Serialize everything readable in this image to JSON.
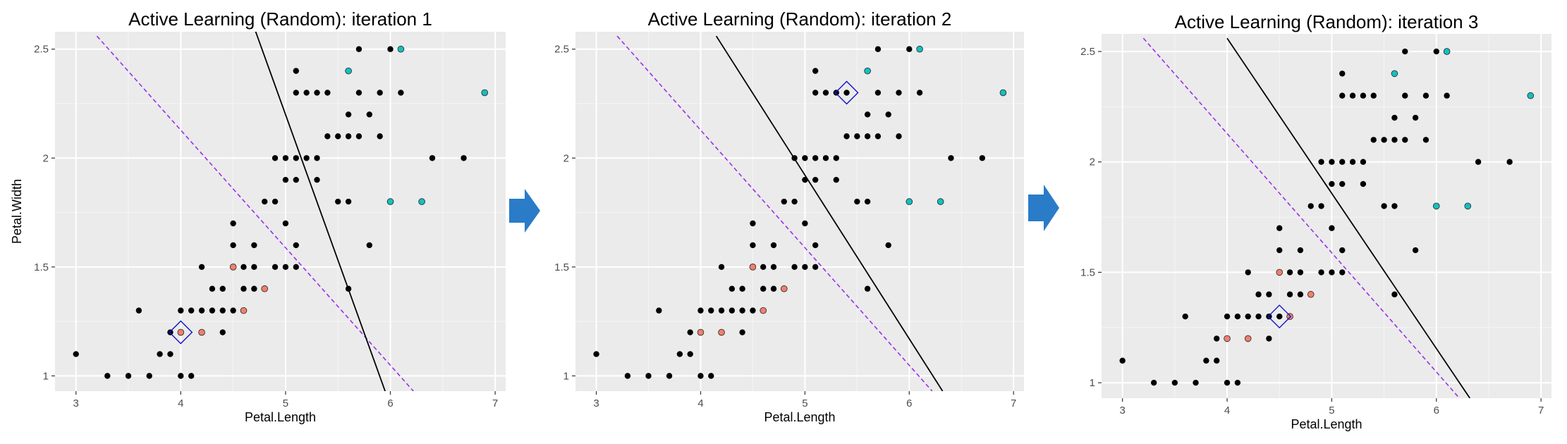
{
  "colors": {
    "panel_bg": "#ebebeb",
    "grid_major": "#ffffff",
    "unlabeled_point": "#000000",
    "labeled_class_a": "#f07f6e",
    "labeled_class_b": "#16bfbf",
    "query_marker": "#1010c8",
    "current_boundary": "#000000",
    "reference_boundary": "#9a2fe8",
    "arrow": "#2a7bc8"
  },
  "chart_data": [
    {
      "type": "scatter",
      "title": "Active Learning (Random): iteration 1",
      "xlabel": "Petal.Length",
      "ylabel": "Petal.Width",
      "xlim": [
        2.8,
        7.1
      ],
      "ylim": [
        0.93,
        2.58
      ],
      "xticks": [
        3,
        4,
        5,
        6,
        7
      ],
      "yticks": [
        1.0,
        1.5,
        2.0,
        2.5
      ],
      "grid": true,
      "query_point": [
        4.0,
        1.2
      ],
      "boundary_solid": [
        [
          4.7,
          2.6
        ],
        [
          5.95,
          0.93
        ]
      ],
      "boundary_dashed": [
        [
          3.2,
          2.56
        ],
        [
          6.22,
          0.93
        ]
      ]
    },
    {
      "type": "scatter",
      "title": "Active Learning (Random): iteration 2",
      "xlabel": "Petal.Length",
      "ylabel": "",
      "xlim": [
        2.8,
        7.1
      ],
      "ylim": [
        0.93,
        2.58
      ],
      "xticks": [
        3,
        4,
        5,
        6,
        7
      ],
      "yticks": [
        1.0,
        1.5,
        2.0,
        2.5
      ],
      "grid": true,
      "query_point": [
        5.4,
        2.3
      ],
      "boundary_solid": [
        [
          4.15,
          2.56
        ],
        [
          6.32,
          0.93
        ]
      ],
      "boundary_dashed": [
        [
          3.2,
          2.56
        ],
        [
          6.22,
          0.93
        ]
      ]
    },
    {
      "type": "scatter",
      "title": "Active Learning (Random): iteration 3",
      "xlabel": "Petal.Length",
      "ylabel": "",
      "xlim": [
        2.8,
        7.1
      ],
      "ylim": [
        0.93,
        2.58
      ],
      "xticks": [
        3,
        4,
        5,
        6,
        7
      ],
      "yticks": [
        1.0,
        1.5,
        2.0,
        2.5
      ],
      "grid": true,
      "query_point": [
        4.5,
        1.3
      ],
      "boundary_solid": [
        [
          4.0,
          2.56
        ],
        [
          6.32,
          0.93
        ]
      ],
      "boundary_dashed": [
        [
          3.2,
          2.56
        ],
        [
          6.22,
          0.93
        ]
      ]
    }
  ],
  "points": {
    "unlabeled": [
      [
        3.0,
        1.1
      ],
      [
        3.3,
        1.0
      ],
      [
        3.5,
        1.0
      ],
      [
        3.7,
        1.0
      ],
      [
        3.6,
        1.3
      ],
      [
        3.8,
        1.1
      ],
      [
        3.9,
        1.1
      ],
      [
        3.9,
        1.2
      ],
      [
        4.0,
        1.0
      ],
      [
        4.1,
        1.0
      ],
      [
        4.0,
        1.3
      ],
      [
        4.1,
        1.3
      ],
      [
        4.2,
        1.3
      ],
      [
        4.3,
        1.3
      ],
      [
        4.4,
        1.3
      ],
      [
        4.5,
        1.3
      ],
      [
        4.2,
        1.5
      ],
      [
        4.4,
        1.4
      ],
      [
        4.5,
        1.5
      ],
      [
        4.5,
        1.6
      ],
      [
        4.5,
        1.7
      ],
      [
        4.6,
        1.4
      ],
      [
        4.6,
        1.5
      ],
      [
        4.7,
        1.4
      ],
      [
        4.7,
        1.5
      ],
      [
        4.7,
        1.6
      ],
      [
        4.8,
        1.8
      ],
      [
        4.9,
        1.8
      ],
      [
        4.9,
        1.5
      ],
      [
        4.9,
        2.0
      ],
      [
        5.0,
        2.0
      ],
      [
        5.0,
        1.9
      ],
      [
        5.0,
        1.7
      ],
      [
        5.0,
        1.5
      ],
      [
        5.1,
        1.5
      ],
      [
        5.1,
        1.6
      ],
      [
        5.1,
        1.9
      ],
      [
        5.1,
        2.0
      ],
      [
        5.1,
        2.3
      ],
      [
        5.1,
        2.4
      ],
      [
        5.2,
        2.3
      ],
      [
        5.3,
        2.3
      ],
      [
        5.4,
        2.3
      ],
      [
        5.3,
        1.9
      ],
      [
        5.4,
        2.1
      ],
      [
        5.5,
        2.1
      ],
      [
        5.5,
        1.8
      ],
      [
        5.6,
        1.8
      ],
      [
        5.6,
        2.1
      ],
      [
        5.6,
        2.2
      ],
      [
        5.6,
        1.4
      ],
      [
        5.7,
        2.1
      ],
      [
        5.7,
        2.3
      ],
      [
        5.7,
        2.5
      ],
      [
        5.8,
        1.6
      ],
      [
        5.8,
        2.2
      ],
      [
        5.9,
        2.1
      ],
      [
        5.9,
        2.3
      ],
      [
        6.0,
        2.5
      ],
      [
        6.1,
        2.3
      ],
      [
        6.4,
        2.0
      ],
      [
        6.7,
        2.0
      ],
      [
        5.2,
        2.0
      ],
      [
        5.3,
        2.0
      ],
      [
        4.8,
        1.4
      ],
      [
        4.4,
        1.2
      ],
      [
        4.3,
        1.4
      ],
      [
        4.6,
        1.3
      ]
    ],
    "class_a": [
      [
        4.0,
        1.2
      ],
      [
        4.2,
        1.2
      ],
      [
        4.5,
        1.5
      ],
      [
        4.6,
        1.3
      ],
      [
        4.8,
        1.4
      ]
    ],
    "class_b": [
      [
        5.6,
        2.4
      ],
      [
        6.1,
        2.5
      ],
      [
        6.9,
        2.3
      ],
      [
        6.0,
        1.8
      ],
      [
        6.3,
        1.8
      ]
    ]
  }
}
